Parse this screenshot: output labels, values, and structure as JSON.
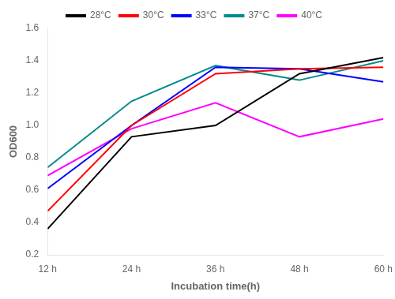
{
  "chart_data": {
    "type": "line",
    "x": [
      12,
      24,
      36,
      48,
      60
    ],
    "series": [
      {
        "name": "28°C",
        "color": "#000000",
        "values": [
          0.36,
          0.93,
          1.0,
          1.32,
          1.42
        ]
      },
      {
        "name": "30°C",
        "color": "#ff0000",
        "values": [
          0.47,
          1.0,
          1.32,
          1.35,
          1.36
        ]
      },
      {
        "name": "33°C",
        "color": "#0000ff",
        "values": [
          0.61,
          1.0,
          1.36,
          1.35,
          1.27
        ]
      },
      {
        "name": "37°C",
        "color": "#008b8b",
        "values": [
          0.74,
          1.15,
          1.37,
          1.28,
          1.4
        ]
      },
      {
        "name": "40°C",
        "color": "#ff00ff",
        "values": [
          0.69,
          0.98,
          1.14,
          0.93,
          1.04
        ]
      }
    ],
    "x_label": "Incubation time(h)",
    "y_label": "OD600",
    "xlim": [
      12,
      60
    ],
    "xticks": [
      {
        "value": 12,
        "label": "12 h"
      },
      {
        "value": 24,
        "label": "24 h"
      },
      {
        "value": 36,
        "label": "36 h"
      },
      {
        "value": 48,
        "label": "48 h"
      },
      {
        "value": 60,
        "label": "60 h"
      }
    ],
    "ylim": [
      0.2,
      1.6
    ],
    "yticks": [
      0.2,
      0.4,
      0.6,
      0.8,
      {
        "value": 1.0,
        "label": "1.0"
      },
      1.2,
      1.4,
      1.6
    ],
    "grid": false,
    "legend": "top"
  }
}
